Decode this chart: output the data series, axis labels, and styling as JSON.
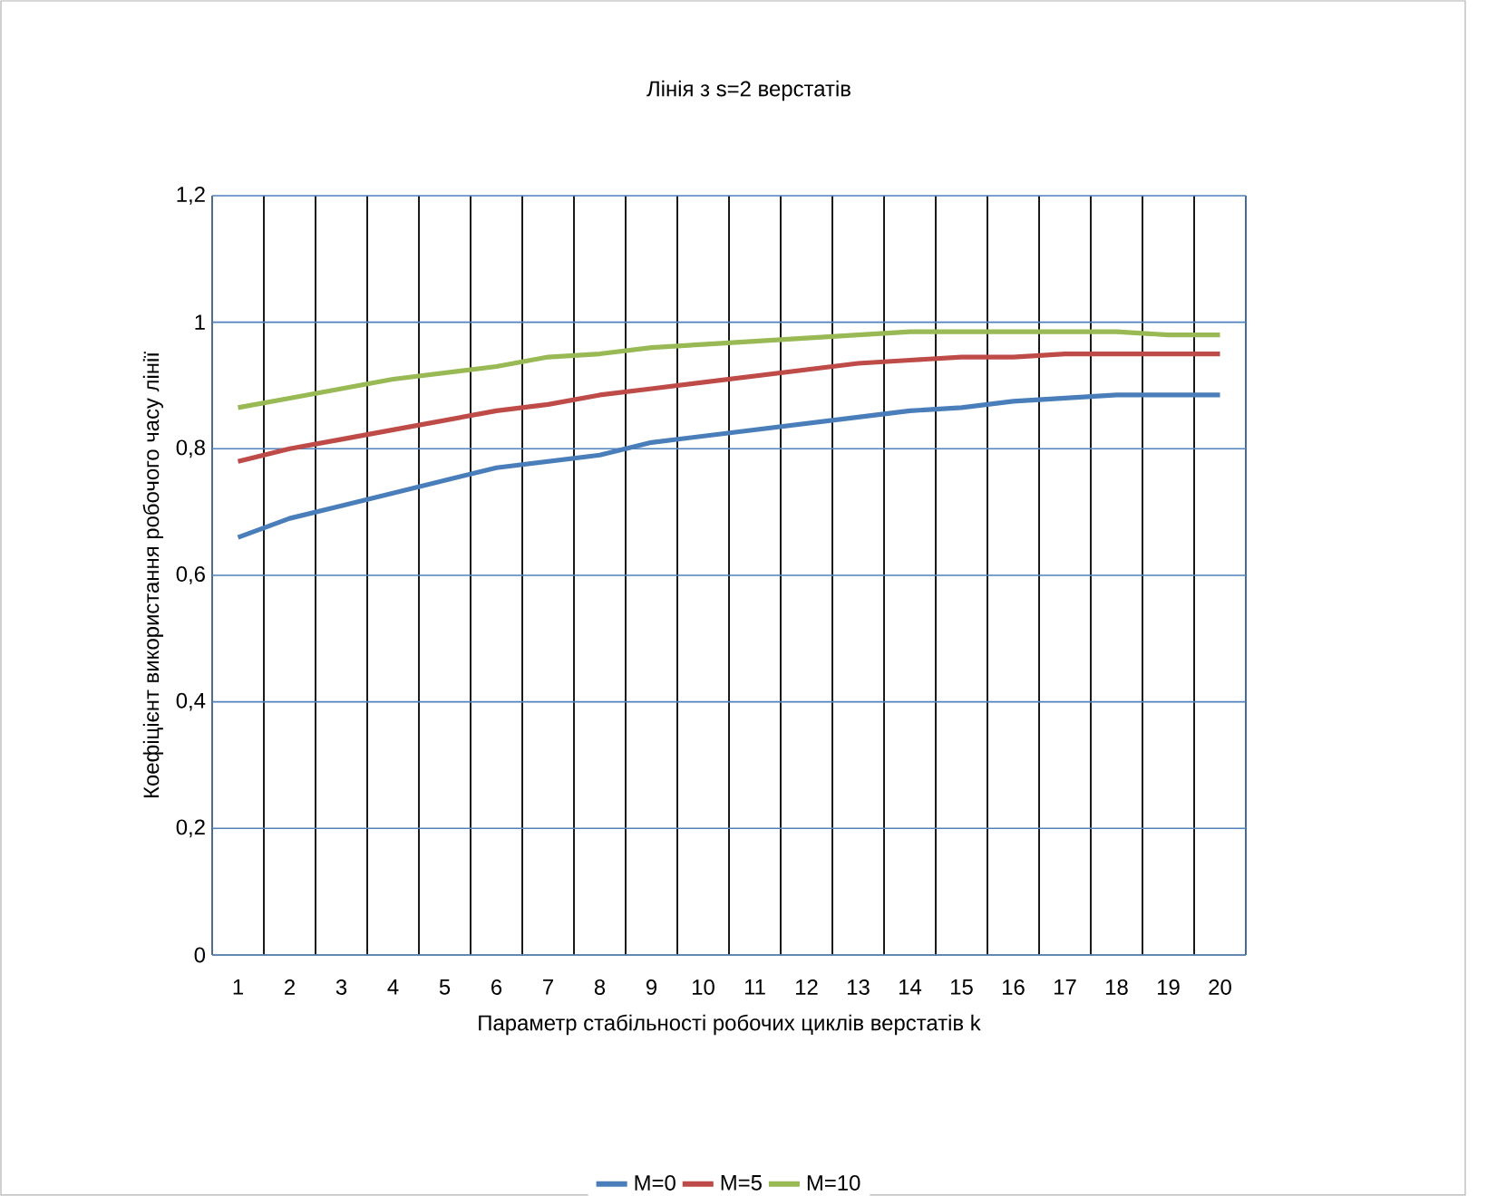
{
  "chart_data": {
    "type": "line",
    "title": "Лінія з s=2 верстатів",
    "xlabel": "Параметр стабільності робочих циклів верстатів k",
    "ylabel": "Коефіцієнт використання  робочого часу лінії",
    "categories": [
      "1",
      "2",
      "3",
      "4",
      "5",
      "6",
      "7",
      "8",
      "9",
      "10",
      "11",
      "12",
      "13",
      "14",
      "15",
      "16",
      "17",
      "18",
      "19",
      "20"
    ],
    "series": [
      {
        "name": "M=0",
        "color": "#4a7ebb",
        "values": [
          0.66,
          0.69,
          0.71,
          0.73,
          0.75,
          0.77,
          0.78,
          0.79,
          0.81,
          0.82,
          0.83,
          0.84,
          0.85,
          0.86,
          0.865,
          0.875,
          0.88,
          0.885,
          0.885,
          0.885
        ]
      },
      {
        "name": "M=5",
        "color": "#be4b48",
        "values": [
          0.78,
          0.8,
          0.815,
          0.83,
          0.845,
          0.86,
          0.87,
          0.885,
          0.895,
          0.905,
          0.915,
          0.925,
          0.935,
          0.94,
          0.945,
          0.945,
          0.95,
          0.95,
          0.95,
          0.95
        ]
      },
      {
        "name": "M=10",
        "color": "#98b954",
        "values": [
          0.865,
          0.88,
          0.895,
          0.91,
          0.92,
          0.93,
          0.945,
          0.95,
          0.96,
          0.965,
          0.97,
          0.975,
          0.98,
          0.985,
          0.985,
          0.985,
          0.985,
          0.985,
          0.98,
          0.98
        ]
      }
    ],
    "ylim": [
      0,
      1.2
    ],
    "yticks": [
      {
        "value": 0,
        "label": "0"
      },
      {
        "value": 0.2,
        "label": "0,2"
      },
      {
        "value": 0.4,
        "label": "0,4"
      },
      {
        "value": 0.6,
        "label": "0,6"
      },
      {
        "value": 0.8,
        "label": "0,8"
      },
      {
        "value": 1,
        "label": "1"
      },
      {
        "value": 1.2,
        "label": "1,2"
      }
    ],
    "grid": true,
    "legend": "bottom",
    "marker": "none",
    "line_style": "solid"
  }
}
